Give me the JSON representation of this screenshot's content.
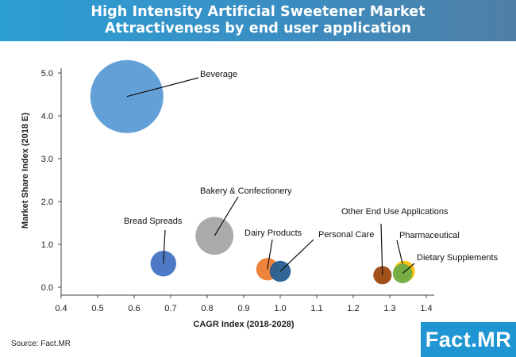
{
  "header": {
    "title_line1": "High Intensity Artificial Sweetener Market",
    "title_line2": "Attractiveness by end user application",
    "background": "#2b9fd4"
  },
  "chart_data": {
    "type": "bubble",
    "title": "High Intensity Artificial Sweetener Market Attractiveness by end user application",
    "xlabel": "CAGR Index (2018-2028)",
    "ylabel": "Market Share Index (2018 E)",
    "xlim": [
      0.4,
      1.4
    ],
    "ylim": [
      0.0,
      5.0
    ],
    "x_ticks": [
      "0.4",
      "0.5",
      "0.6",
      "0.7",
      "0.8",
      "0.9",
      "1.0",
      "1.1",
      "1.2",
      "1.3",
      "1.4"
    ],
    "y_ticks": [
      "0.0",
      "1.0",
      "2.0",
      "3.0",
      "4.0",
      "5.0"
    ],
    "grid": false,
    "series": [
      {
        "name": "Beverage",
        "x": 0.58,
        "y": 4.45,
        "size": 4.45,
        "color": "#5b9bd5"
      },
      {
        "name": "Bakery & Confectionery",
        "x": 0.82,
        "y": 1.2,
        "size": 1.2,
        "color": "#a5a5a5"
      },
      {
        "name": "Bread Spreads",
        "x": 0.68,
        "y": 0.55,
        "size": 0.55,
        "color": "#4472c4"
      },
      {
        "name": "Dairy Products",
        "x": 0.965,
        "y": 0.42,
        "size": 0.42,
        "color": "#ed7d31"
      },
      {
        "name": "Personal Care",
        "x": 1.0,
        "y": 0.37,
        "size": 0.37,
        "color": "#255e91"
      },
      {
        "name": "Other End Use Applications",
        "x": 1.28,
        "y": 0.28,
        "size": 0.28,
        "color": "#9e480e"
      },
      {
        "name": "Pharmaceutical",
        "x": 1.34,
        "y": 0.37,
        "size": 0.37,
        "color": "#ffc000"
      },
      {
        "name": "Dietary Supplements",
        "x": 1.335,
        "y": 0.32,
        "size": 0.32,
        "color": "#70ad47"
      }
    ]
  },
  "footer": {
    "source": "Source: Fact.MR",
    "logo_main": "Fact",
    "logo_dot": ".",
    "logo_suffix": "MR"
  }
}
